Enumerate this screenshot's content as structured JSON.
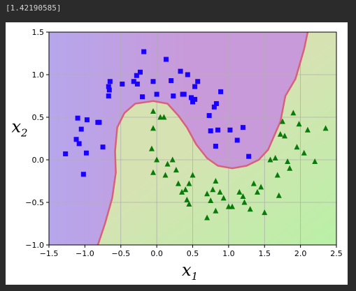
{
  "output": {
    "text": "[1.42190585]"
  },
  "colors": {
    "page_bg": "#2b2b2b",
    "figure_bg": "#ffffff",
    "region_class0": "#c99ad9",
    "region_class0_edge": "#b6a6ec",
    "region_class1": "#d7e2b3",
    "region_class1_edge": "#b9f0a6",
    "boundary": "#d9607a",
    "class0_marker": "#1a00ff",
    "class1_marker": "#0a7a0a",
    "grid": "#b0b0b0"
  },
  "chart_data": {
    "type": "scatter",
    "title": "",
    "xlabel": "x",
    "xlabel_sub": "1",
    "ylabel": "x",
    "ylabel_sub": "2",
    "xlim": [
      -1.5,
      2.5
    ],
    "ylim": [
      -1.0,
      1.5
    ],
    "xticks": [
      -1.5,
      -1.0,
      -0.5,
      0.0,
      0.5,
      1.0,
      1.5,
      2.0,
      2.5
    ],
    "xtick_labels": [
      "−1.5",
      "−1.0",
      "−0.5",
      "0.0",
      "0.5",
      "1.0",
      "1.5",
      "2.0",
      "2.5"
    ],
    "yticks": [
      -1.0,
      -0.5,
      0.0,
      0.5,
      1.0,
      1.5
    ],
    "ytick_labels": [
      "−1.0",
      "−0.5",
      "0.0",
      "0.5",
      "1.0",
      "1.5"
    ],
    "grid": true,
    "decision_boundary": [
      [
        -0.82,
        -1.0
      ],
      [
        -0.72,
        -0.75
      ],
      [
        -0.62,
        -0.45
      ],
      [
        -0.57,
        -0.15
      ],
      [
        -0.58,
        0.1
      ],
      [
        -0.55,
        0.38
      ],
      [
        -0.45,
        0.55
      ],
      [
        -0.3,
        0.66
      ],
      [
        -0.05,
        0.69
      ],
      [
        0.15,
        0.66
      ],
      [
        0.3,
        0.52
      ],
      [
        0.42,
        0.38
      ],
      [
        0.55,
        0.18
      ],
      [
        0.7,
        0.02
      ],
      [
        0.85,
        -0.07
      ],
      [
        1.05,
        -0.1
      ],
      [
        1.25,
        -0.07
      ],
      [
        1.42,
        0.0
      ],
      [
        1.55,
        0.12
      ],
      [
        1.72,
        0.45
      ],
      [
        1.79,
        0.75
      ],
      [
        1.93,
        0.95
      ],
      [
        2.05,
        1.3
      ],
      [
        2.1,
        1.5
      ]
    ],
    "series": [
      {
        "marker": "square",
        "points": [
          [
            -1.27,
            0.07
          ],
          [
            -1.12,
            0.24
          ],
          [
            -1.1,
            0.49
          ],
          [
            -1.05,
            0.36
          ],
          [
            -1.08,
            0.19
          ],
          [
            -1.02,
            -0.17
          ],
          [
            -0.97,
            0.47
          ],
          [
            -0.98,
            0.08
          ],
          [
            -0.82,
            0.44
          ],
          [
            -0.8,
            0.44
          ],
          [
            -0.75,
            0.15
          ],
          [
            -0.67,
            0.86
          ],
          [
            -0.67,
            0.75
          ],
          [
            -0.66,
            0.82
          ],
          [
            -0.65,
            0.92
          ],
          [
            -0.48,
            0.89
          ],
          [
            -0.32,
            0.92
          ],
          [
            -0.28,
            0.99
          ],
          [
            -0.27,
            0.89
          ],
          [
            -0.23,
            1.03
          ],
          [
            -0.2,
            0.74
          ],
          [
            -0.18,
            1.27
          ],
          [
            -0.05,
            0.92
          ],
          [
            0.0,
            0.77
          ],
          [
            0.13,
            1.18
          ],
          [
            0.2,
            0.93
          ],
          [
            0.23,
            0.75
          ],
          [
            0.33,
            1.04
          ],
          [
            0.36,
            0.77
          ],
          [
            0.38,
            0.77
          ],
          [
            0.43,
            1.0
          ],
          [
            0.48,
            0.73
          ],
          [
            0.5,
            0.68
          ],
          [
            0.53,
            0.71
          ],
          [
            0.53,
            0.86
          ],
          [
            0.57,
            0.92
          ],
          [
            0.73,
            0.52
          ],
          [
            0.75,
            0.34
          ],
          [
            0.8,
            0.62
          ],
          [
            0.83,
            0.66
          ],
          [
            0.85,
            0.35
          ],
          [
            0.89,
            0.8
          ],
          [
            0.82,
            0.16
          ],
          [
            1.02,
            0.35
          ],
          [
            1.12,
            0.23
          ],
          [
            1.2,
            0.38
          ],
          [
            1.28,
            0.04
          ]
        ]
      },
      {
        "marker": "triangle",
        "points": [
          [
            -0.05,
            0.57
          ],
          [
            0.05,
            0.5
          ],
          [
            0.1,
            0.5
          ],
          [
            -0.05,
            0.37
          ],
          [
            -0.07,
            0.13
          ],
          [
            0.0,
            0.0
          ],
          [
            -0.05,
            -0.15
          ],
          [
            0.12,
            -0.18
          ],
          [
            0.15,
            -0.05
          ],
          [
            0.22,
            0.0
          ],
          [
            0.27,
            -0.12
          ],
          [
            0.3,
            -0.28
          ],
          [
            0.35,
            -0.38
          ],
          [
            0.4,
            -0.35
          ],
          [
            0.42,
            -0.47
          ],
          [
            0.45,
            -0.52
          ],
          [
            0.5,
            -0.18
          ],
          [
            0.45,
            -0.28
          ],
          [
            0.7,
            -0.4
          ],
          [
            0.75,
            -0.48
          ],
          [
            0.78,
            -0.35
          ],
          [
            0.82,
            -0.25
          ],
          [
            0.88,
            -0.38
          ],
          [
            1.0,
            -0.55
          ],
          [
            1.05,
            -0.55
          ],
          [
            1.15,
            -0.38
          ],
          [
            1.2,
            -0.43
          ],
          [
            1.22,
            -0.5
          ],
          [
            1.3,
            -0.58
          ],
          [
            1.35,
            -0.28
          ],
          [
            1.4,
            -0.38
          ],
          [
            1.45,
            -0.32
          ],
          [
            1.5,
            -0.62
          ],
          [
            1.58,
            0.0
          ],
          [
            1.65,
            0.02
          ],
          [
            1.72,
            0.3
          ],
          [
            1.75,
            0.45
          ],
          [
            1.78,
            0.28
          ],
          [
            1.82,
            -0.02
          ],
          [
            1.9,
            0.55
          ],
          [
            1.95,
            0.15
          ],
          [
            1.98,
            0.42
          ],
          [
            2.05,
            0.08
          ],
          [
            2.1,
            0.35
          ],
          [
            2.2,
            -0.02
          ],
          [
            2.35,
            0.37
          ],
          [
            1.7,
            -0.42
          ],
          [
            1.85,
            -0.1
          ],
          [
            1.68,
            -0.18
          ],
          [
            0.7,
            -0.68
          ],
          [
            0.82,
            -0.6
          ],
          [
            0.93,
            -0.45
          ]
        ]
      }
    ]
  }
}
